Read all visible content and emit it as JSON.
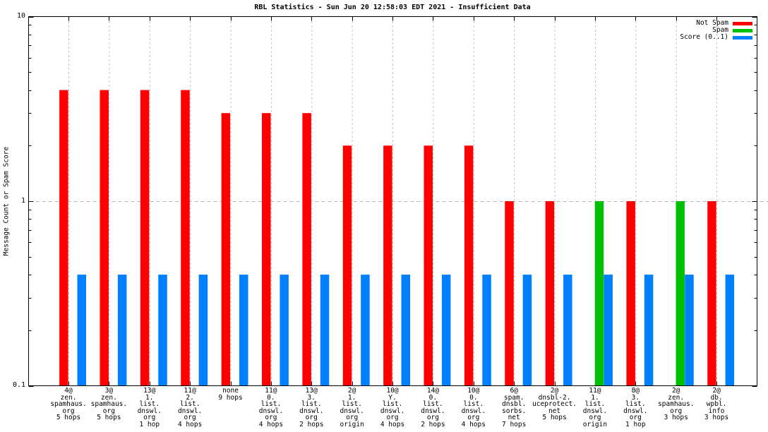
{
  "chart_data": {
    "type": "bar",
    "title": "RBL Statistics - Sun Jun 20 12:58:03 EDT 2021 - Insufficient Data",
    "ylabel": "Message Count or Spam Score",
    "xlabel": "",
    "yscale": "log",
    "ylim": [
      0.1,
      10
    ],
    "ytick_labels": [
      "10",
      "1",
      "0.1"
    ],
    "ytick_values": [
      10,
      1,
      0.1
    ],
    "grid": {
      "vertical": "dotted line at each category",
      "horizontal_dashed_at": 1
    },
    "legend_position": "top-right-inside",
    "colors": {
      "not_spam": "#ff0000",
      "spam": "#00c000",
      "score": "#0080ff",
      "grid": "#aaaaaa",
      "axis": "#000000"
    },
    "categories": [
      [
        "4@",
        "zen.",
        "spamhaus.",
        "org",
        "5 hops"
      ],
      [
        "3@",
        "zen.",
        "spamhaus.",
        "org",
        "5 hops"
      ],
      [
        "13@",
        "1.",
        "list.",
        "dnswl.",
        "org",
        "1 hop"
      ],
      [
        "11@",
        "2.",
        "list.",
        "dnswl.",
        "org",
        "4 hops"
      ],
      [
        "none",
        "9 hops"
      ],
      [
        "11@",
        "0.",
        "list.",
        "dnswl.",
        "org",
        "4 hops"
      ],
      [
        "13@",
        "3.",
        "list.",
        "dnswl.",
        "org",
        "2 hops"
      ],
      [
        "2@",
        "1.",
        "list.",
        "dnswl.",
        "org",
        "origin"
      ],
      [
        "10@",
        "Y.",
        "list.",
        "dnswl.",
        "org",
        "4 hops"
      ],
      [
        "14@",
        "0.",
        "list.",
        "dnswl.",
        "org",
        "2 hops"
      ],
      [
        "10@",
        "0.",
        "list.",
        "dnswl.",
        "org",
        "4 hops"
      ],
      [
        "6@",
        "spam.",
        "dnsbl.",
        "sorbs.",
        "net",
        "7 hops"
      ],
      [
        "2@",
        "dnsbl-2.",
        "uceprotect.",
        "net",
        "5 hops"
      ],
      [
        "11@",
        "1.",
        "list.",
        "dnswl.",
        "org",
        "origin"
      ],
      [
        "8@",
        "3.",
        "list.",
        "dnswl.",
        "org",
        "1 hop"
      ],
      [
        "2@",
        "zen.",
        "spamhaus.",
        "org",
        "3 hops"
      ],
      [
        "2@",
        "db.",
        "wpbl.",
        "info",
        "3 hops"
      ]
    ],
    "series": [
      {
        "name": "Not Spam",
        "color": "#ff0000",
        "values": [
          4,
          4,
          4,
          4,
          3,
          3,
          3,
          2,
          2,
          2,
          2,
          1,
          1,
          0,
          1,
          0,
          1
        ]
      },
      {
        "name": "Spam",
        "color": "#00c000",
        "values": [
          0,
          0,
          0,
          0,
          0,
          0,
          0,
          0,
          0,
          0,
          0,
          0,
          0,
          1,
          0,
          1,
          0
        ]
      },
      {
        "name": "Score (0..1)",
        "color": "#0080ff",
        "values": [
          0.4,
          0.4,
          0.4,
          0.4,
          0.4,
          0.4,
          0.4,
          0.4,
          0.4,
          0.4,
          0.4,
          0.4,
          0.4,
          0.4,
          0.4,
          0.4,
          0.4
        ]
      }
    ]
  }
}
